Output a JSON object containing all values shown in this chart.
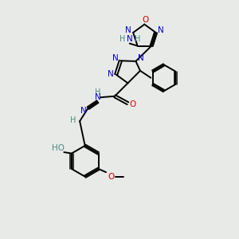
{
  "bg_color": "#e8eae8",
  "atom_colors": {
    "C": "#000000",
    "N": "#0000cc",
    "O": "#cc0000",
    "H": "#4a8a80"
  },
  "figsize": [
    3.0,
    3.0
  ],
  "dpi": 100,
  "lw": 1.4,
  "fs": 7.5
}
